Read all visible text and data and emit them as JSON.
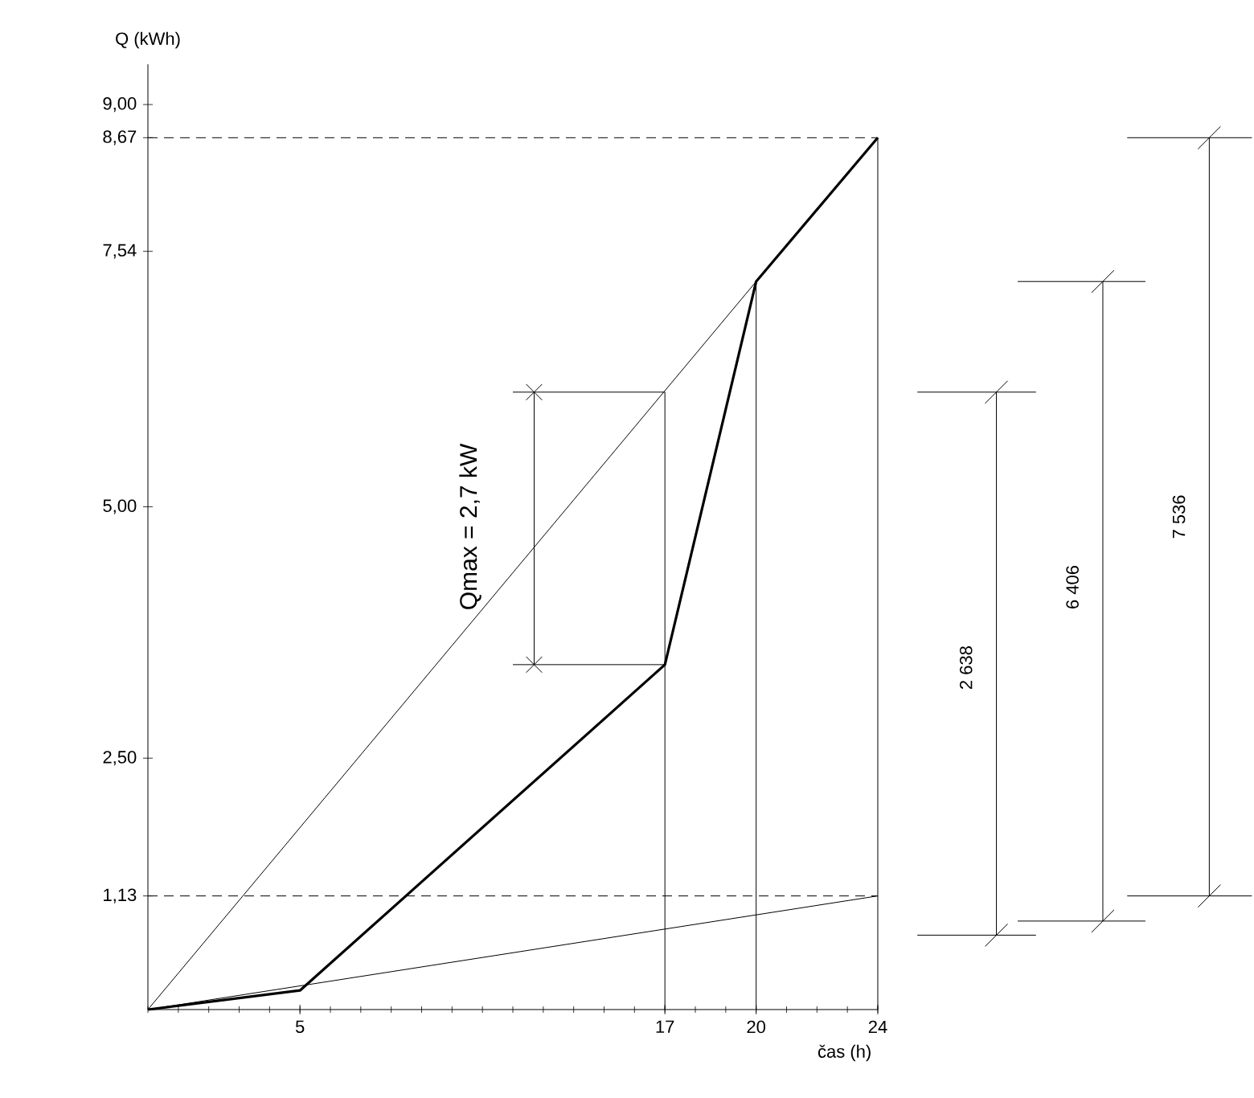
{
  "chart_data": {
    "type": "line",
    "xlabel": "čas (h)",
    "ylabel": "Q (kWh)",
    "xlim": [
      0,
      24
    ],
    "ylim": [
      0,
      9.4
    ],
    "xticks": [
      5,
      17,
      20,
      24
    ],
    "yticks": [
      {
        "value": 1.13,
        "label": "1,13"
      },
      {
        "value": 2.5,
        "label": "2,50"
      },
      {
        "value": 5,
        "label": "5,00"
      },
      {
        "value": 7.54,
        "label": "7,54"
      },
      {
        "value": 8.67,
        "label": "8,67"
      },
      {
        "value": 9,
        "label": "9,00"
      }
    ],
    "series": [
      {
        "color": "#000000",
        "x": [
          0,
          5,
          17,
          20,
          24
        ],
        "values": [
          0,
          0.19,
          3.43,
          7.24,
          8.67
        ]
      },
      {
        "color": "#000000",
        "x": [
          0,
          20
        ],
        "values": [
          0,
          7.24
        ]
      },
      {
        "color": "#000000",
        "x": [
          0,
          24
        ],
        "values": [
          0,
          1.13
        ]
      },
      {
        "color": "#000000",
        "x": [
          17,
          17
        ],
        "values": [
          0,
          6.14
        ]
      },
      {
        "color": "#000000",
        "x": [
          20,
          20
        ],
        "values": [
          0,
          7.24
        ]
      },
      {
        "color": "#000000",
        "x": [
          24,
          24
        ],
        "values": [
          0,
          8.67
        ]
      },
      {
        "color": "#000000",
        "x": [
          12,
          17
        ],
        "values": [
          3.43,
          3.43
        ]
      },
      {
        "color": "#000000",
        "x": [
          12,
          17
        ],
        "values": [
          6.14,
          6.14
        ]
      },
      {
        "color": "#000000",
        "x": [
          12.7,
          12.7
        ],
        "values": [
          3.43,
          6.14
        ],
        "marker": "cross"
      }
    ],
    "ref_lines": [
      {
        "axis": "y",
        "value": 8.67,
        "line_style": "dashed",
        "color": "#000000"
      },
      {
        "axis": "y",
        "value": 1.13,
        "line_style": "dashed",
        "color": "#000000"
      }
    ],
    "annotations": [
      "Qmax = 2,7 kW",
      "2 638",
      "6 406",
      "7 536"
    ],
    "grid": false,
    "marker": "none"
  }
}
